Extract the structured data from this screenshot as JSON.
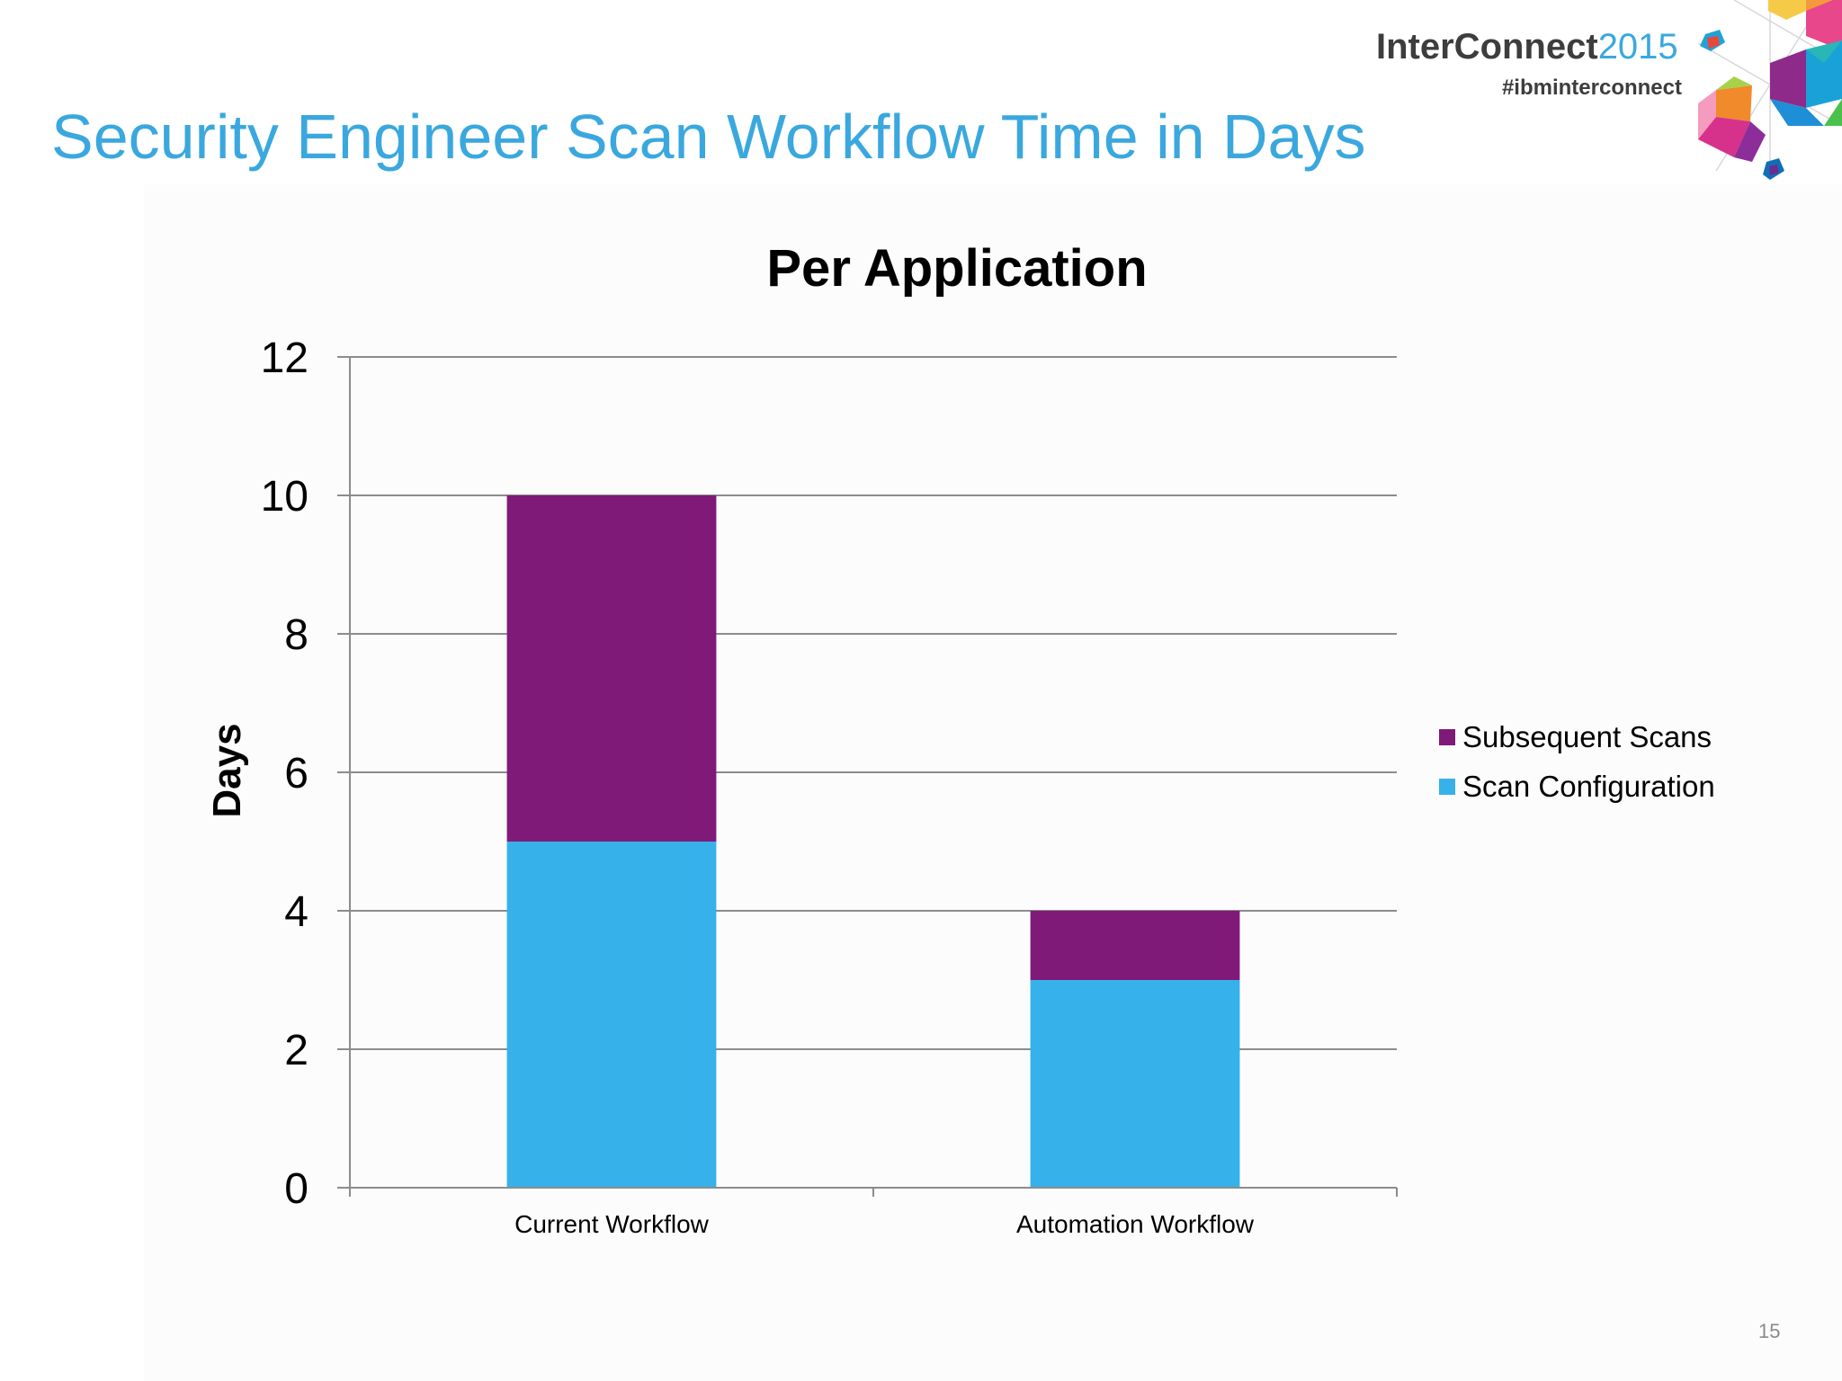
{
  "slide": {
    "title": "Security Engineer Scan Workflow Time in Days",
    "page_number": "15",
    "logo": {
      "brand": "InterConnect",
      "year": "2015",
      "hashtag": "#ibminterconnect"
    }
  },
  "chart_data": {
    "type": "bar",
    "stacked": true,
    "title": "Per Application",
    "xlabel": "",
    "ylabel": "Days",
    "categories": [
      "Current Workflow",
      "Automation Workflow"
    ],
    "series": [
      {
        "name": "Scan Configuration",
        "values": [
          5,
          3
        ],
        "color": "#36b1ea"
      },
      {
        "name": "Subsequent Scans",
        "values": [
          5,
          1
        ],
        "color": "#7f1a79"
      }
    ],
    "legend_order": [
      "Subsequent Scans",
      "Scan Configuration"
    ],
    "ylim": [
      0,
      12
    ],
    "yticks": [
      0,
      2,
      4,
      6,
      8,
      10,
      12
    ],
    "grid": true,
    "legend_position": "right"
  }
}
